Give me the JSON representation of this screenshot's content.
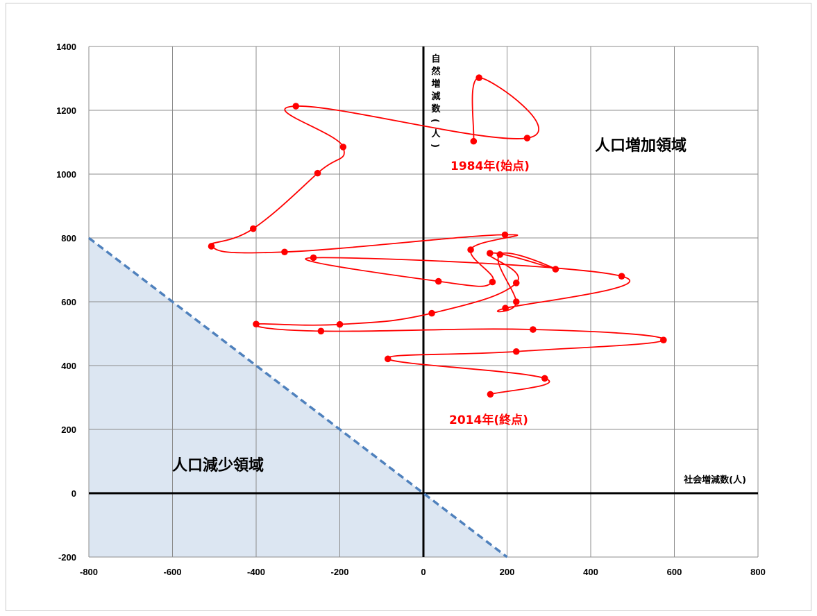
{
  "chart_data": {
    "type": "scatter",
    "connected": true,
    "xlim": [
      -800,
      800
    ],
    "ylim": [
      -200,
      1400
    ],
    "x_ticks": [
      -800,
      -600,
      -400,
      -200,
      0,
      200,
      400,
      600,
      800
    ],
    "y_ticks": [
      -200,
      0,
      200,
      400,
      600,
      800,
      1000,
      1200,
      1400
    ],
    "x_tick_labels": [
      "-800",
      "-600",
      "-400",
      "-200",
      "0",
      "200",
      "400",
      "600",
      "800"
    ],
    "y_tick_labels": [
      "-200",
      "0",
      "200",
      "400",
      "600",
      "800",
      "1000",
      "1200",
      "1400"
    ],
    "xlabel": "社会増減数(人)",
    "ylabel": "自然増減数(人)",
    "grid": true,
    "series": [
      {
        "color": "#ff0000",
        "points": [
          [
            120,
            1103
          ],
          [
            133,
            1302
          ],
          [
            248,
            1113
          ],
          [
            -305,
            1213
          ],
          [
            -192,
            1085
          ],
          [
            -253,
            1003
          ],
          [
            -407,
            829
          ],
          [
            -507,
            774
          ],
          [
            -332,
            756
          ],
          [
            195,
            810
          ],
          [
            113,
            763
          ],
          [
            165,
            662
          ],
          [
            36,
            664
          ],
          [
            -263,
            738
          ],
          [
            474,
            680
          ],
          [
            196,
            580
          ],
          [
            222,
            600
          ],
          [
            183,
            748
          ],
          [
            316,
            702
          ],
          [
            159,
            752
          ],
          [
            222,
            659
          ],
          [
            20,
            564
          ],
          [
            -200,
            529
          ],
          [
            -400,
            530
          ],
          [
            -245,
            508
          ],
          [
            262,
            513
          ],
          [
            574,
            480
          ],
          [
            222,
            444
          ],
          [
            -85,
            421
          ],
          [
            290,
            360
          ],
          [
            160,
            310
          ]
        ]
      }
    ],
    "reference_line": {
      "from": [
        -800,
        800
      ],
      "to": [
        200,
        -200
      ],
      "style": "dashed",
      "color": "#4f81bd"
    },
    "shaded_region_color": "#dce6f2",
    "regions": {
      "increase": "人口増加領域",
      "decrease": "人口減少領域"
    },
    "annotations": {
      "start": "1984年(始点)",
      "end": "2014年(終点)"
    }
  }
}
